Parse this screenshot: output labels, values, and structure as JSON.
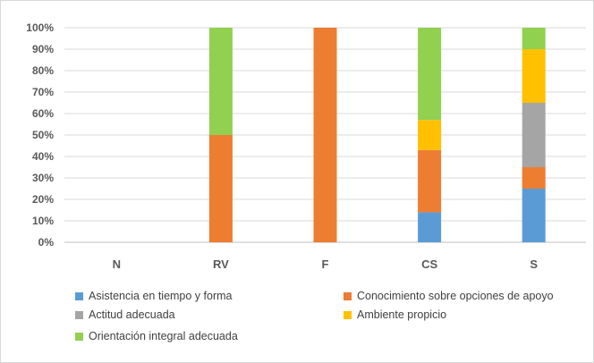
{
  "chart_data": {
    "type": "bar",
    "stacked": true,
    "percent": true,
    "categories": [
      "N",
      "RV",
      "F",
      "CS",
      "S"
    ],
    "yticks": [
      "0%",
      "10%",
      "20%",
      "30%",
      "40%",
      "50%",
      "60%",
      "70%",
      "80%",
      "90%",
      "100%"
    ],
    "ylim": [
      0,
      100
    ],
    "grid": true,
    "legend_position": "bottom",
    "series": [
      {
        "name": "Asistencia en tiempo y forma",
        "color": "#5b9bd5",
        "values": [
          0,
          0,
          0,
          14,
          25
        ]
      },
      {
        "name": "Conocimiento sobre opciones de apoyo",
        "color": "#ed7d31",
        "values": [
          0,
          50,
          100,
          29,
          10
        ]
      },
      {
        "name": "Actitud adecuada",
        "color": "#a5a5a5",
        "values": [
          0,
          0,
          0,
          0,
          30
        ]
      },
      {
        "name": "Ambiente propicio",
        "color": "#ffc000",
        "values": [
          0,
          0,
          0,
          14,
          25
        ]
      },
      {
        "name": "Orientación integral adecuada",
        "color": "#92d050",
        "values": [
          0,
          50,
          0,
          43,
          10
        ]
      }
    ]
  }
}
